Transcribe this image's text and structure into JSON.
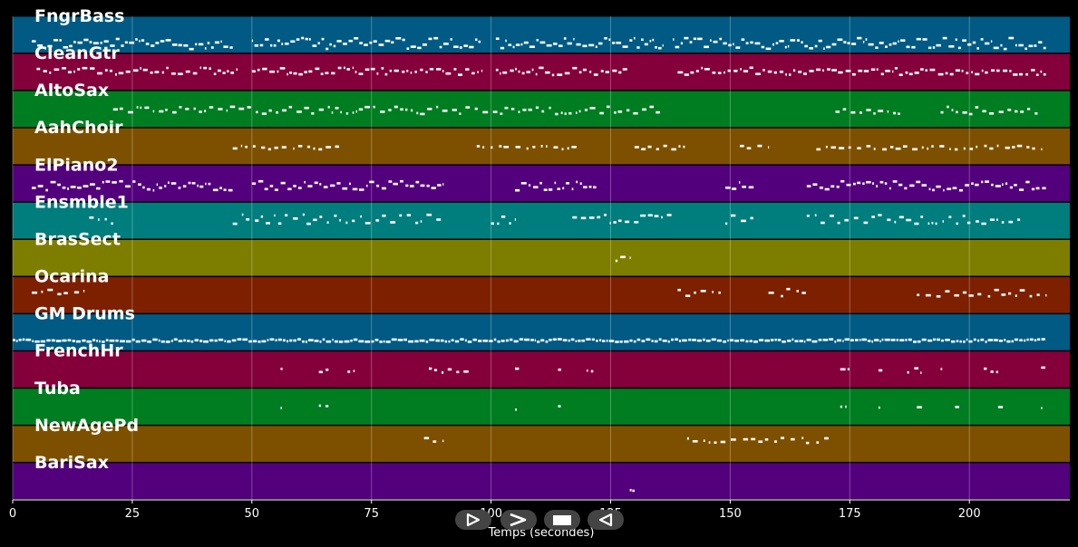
{
  "chart_data": {
    "type": "piano-roll",
    "xlabel": "Temps (secondes)",
    "xlim": [
      0,
      221
    ],
    "xticks": [
      0,
      25,
      50,
      75,
      100,
      125,
      150,
      175,
      200
    ],
    "grid": true,
    "tracks": [
      {
        "name": "FngrBass",
        "color": "#005a84",
        "regions": [
          [
            4,
            46
          ],
          [
            50,
            98
          ],
          [
            101,
            136
          ],
          [
            138,
            216
          ]
        ],
        "density": 0.9,
        "pitch": [
          0.55,
          0.85
        ]
      },
      {
        "name": "CleanGtr",
        "color": "#84003a",
        "regions": [
          [
            5,
            47
          ],
          [
            50,
            98
          ],
          [
            101,
            129
          ],
          [
            139,
            216
          ]
        ],
        "density": 0.75,
        "pitch": [
          0.35,
          0.55
        ]
      },
      {
        "name": "AltoSax",
        "color": "#007d20",
        "regions": [
          [
            21,
            63
          ],
          [
            64,
            136
          ],
          [
            172,
            186
          ],
          [
            194,
            215
          ]
        ],
        "density": 0.55,
        "pitch": [
          0.4,
          0.6
        ]
      },
      {
        "name": "AahChoir",
        "color": "#7d5000",
        "regions": [
          [
            46,
            69
          ],
          [
            97,
            118
          ],
          [
            130,
            141
          ],
          [
            152,
            158
          ],
          [
            168,
            215
          ]
        ],
        "density": 0.35,
        "pitch": [
          0.45,
          0.55
        ]
      },
      {
        "name": "ElPiano2",
        "color": "#53007d",
        "regions": [
          [
            4,
            46
          ],
          [
            50,
            90
          ],
          [
            105,
            122
          ],
          [
            149,
            155
          ],
          [
            166,
            216
          ]
        ],
        "density": 0.8,
        "pitch": [
          0.4,
          0.65
        ]
      },
      {
        "name": "Ensmble1",
        "color": "#007d7d",
        "regions": [
          [
            16,
            21
          ],
          [
            46,
            90
          ],
          [
            100,
            105
          ],
          [
            117,
            138
          ],
          [
            149,
            155
          ],
          [
            166,
            211
          ]
        ],
        "density": 0.5,
        "pitch": [
          0.3,
          0.55
        ]
      },
      {
        "name": "BrasSect",
        "color": "#7d7d00",
        "regions": [
          [
            126,
            129
          ]
        ],
        "density": 0.6,
        "pitch": [
          0.4,
          0.6
        ]
      },
      {
        "name": "Ocarina",
        "color": "#7d2000",
        "regions": [
          [
            4,
            15
          ],
          [
            139,
            148
          ],
          [
            158,
            166
          ],
          [
            189,
            216
          ]
        ],
        "density": 0.35,
        "pitch": [
          0.3,
          0.5
        ]
      },
      {
        "name": "GM Drums",
        "color": "#005a84",
        "regions": [
          [
            0,
            216
          ]
        ],
        "density": 0.95,
        "pitch": [
          0.65,
          0.72
        ]
      },
      {
        "name": "FrenchHr",
        "color": "#84003a",
        "regions": [
          [
            56,
            57
          ],
          [
            64,
            66
          ],
          [
            70,
            72
          ],
          [
            87,
            96
          ],
          [
            105,
            106
          ],
          [
            114,
            115
          ],
          [
            120,
            122
          ],
          [
            173,
            175
          ],
          [
            181,
            182
          ],
          [
            187,
            190
          ],
          [
            194,
            195
          ],
          [
            203,
            206
          ],
          [
            215,
            216
          ]
        ],
        "density": 0.5,
        "pitch": [
          0.4,
          0.55
        ]
      },
      {
        "name": "Tuba",
        "color": "#007d20",
        "regions": [
          [
            56,
            57
          ],
          [
            64,
            66
          ],
          [
            105,
            106
          ],
          [
            114,
            115
          ],
          [
            173,
            175
          ],
          [
            181,
            182
          ],
          [
            189,
            191
          ],
          [
            197,
            198
          ],
          [
            206,
            207
          ],
          [
            215,
            216
          ]
        ],
        "density": 0.5,
        "pitch": [
          0.4,
          0.55
        ]
      },
      {
        "name": "NewAgePd",
        "color": "#7d5000",
        "regions": [
          [
            86,
            90
          ],
          [
            141,
            171
          ]
        ],
        "density": 0.3,
        "pitch": [
          0.3,
          0.45
        ]
      },
      {
        "name": "BariSax",
        "color": "#53007d",
        "regions": [
          [
            129,
            130
          ]
        ],
        "density": 1.0,
        "pitch": [
          0.7,
          0.75
        ]
      }
    ]
  },
  "transport": {
    "buttons": [
      {
        "name": "play-icon",
        "symbol": "play"
      },
      {
        "name": "fast-forward-icon",
        "symbol": "next"
      },
      {
        "name": "stop-icon",
        "symbol": "stop"
      },
      {
        "name": "rewind-icon",
        "symbol": "back"
      }
    ]
  }
}
